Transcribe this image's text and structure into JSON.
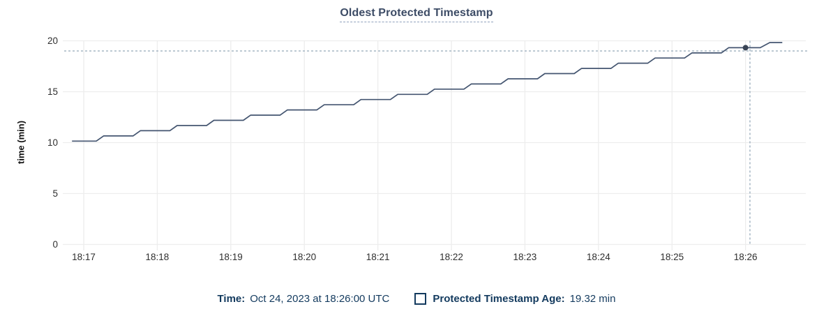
{
  "title": "Oldest Protected Timestamp",
  "y_axis": {
    "label": "time (min)",
    "ticks": [
      "0",
      "5",
      "10",
      "15",
      "20"
    ]
  },
  "x_axis": {
    "ticks": [
      "18:17",
      "18:18",
      "18:19",
      "18:20",
      "18:21",
      "18:22",
      "18:23",
      "18:24",
      "18:25",
      "18:26"
    ]
  },
  "legend": {
    "time_label": "Time:",
    "time_value": "Oct 24, 2023 at 18:26:00 UTC",
    "series_label": "Protected Timestamp Age:",
    "series_value": "19.32 min"
  },
  "colors": {
    "line": "#445570",
    "dot": "#394455",
    "crosshair": "#9eb0bf",
    "grid": "#ededed",
    "title": "#3d4c66",
    "legend_text": "#133a5e",
    "axis_text": "#2f2f2f"
  },
  "chart_data": {
    "type": "line",
    "title": "Oldest Protected Timestamp",
    "xlabel": "",
    "ylabel": "time (min)",
    "ylim": [
      0,
      20
    ],
    "grid": true,
    "legend_position": "bottom",
    "x_tick_labels": [
      "18:17",
      "18:18",
      "18:19",
      "18:20",
      "18:21",
      "18:22",
      "18:23",
      "18:24",
      "18:25",
      "18:26"
    ],
    "x_tick_minutes_after_1800": [
      17,
      18,
      19,
      20,
      21,
      22,
      23,
      24,
      25,
      26
    ],
    "series": [
      {
        "name": "Protected Timestamp Age",
        "unit": "min",
        "points": [
          [
            16.84,
            10.15
          ],
          [
            17.17,
            10.15
          ],
          [
            17.27,
            10.66
          ],
          [
            17.67,
            10.66
          ],
          [
            17.77,
            11.17
          ],
          [
            18.17,
            11.17
          ],
          [
            18.27,
            11.68
          ],
          [
            18.67,
            11.68
          ],
          [
            18.77,
            12.19
          ],
          [
            19.17,
            12.19
          ],
          [
            19.27,
            12.7
          ],
          [
            19.67,
            12.7
          ],
          [
            19.77,
            13.21
          ],
          [
            20.17,
            13.21
          ],
          [
            20.27,
            13.72
          ],
          [
            20.67,
            13.72
          ],
          [
            20.77,
            14.23
          ],
          [
            21.17,
            14.23
          ],
          [
            21.27,
            14.74
          ],
          [
            21.67,
            14.74
          ],
          [
            21.77,
            15.25
          ],
          [
            22.17,
            15.25
          ],
          [
            22.27,
            15.76
          ],
          [
            22.67,
            15.76
          ],
          [
            22.77,
            16.27
          ],
          [
            23.17,
            16.27
          ],
          [
            23.27,
            16.78
          ],
          [
            23.67,
            16.78
          ],
          [
            23.77,
            17.29
          ],
          [
            24.17,
            17.29
          ],
          [
            24.27,
            17.8
          ],
          [
            24.67,
            17.8
          ],
          [
            24.77,
            18.31
          ],
          [
            25.17,
            18.31
          ],
          [
            25.27,
            18.81
          ],
          [
            25.67,
            18.81
          ],
          [
            25.77,
            19.32
          ],
          [
            26.2,
            19.32
          ],
          [
            26.33,
            19.83
          ],
          [
            26.5,
            19.83
          ]
        ]
      }
    ],
    "hover_point": {
      "t": 26.0,
      "v": 19.32,
      "time": "18:26:00 UTC",
      "value_label": "19.32 min"
    },
    "crosshair": {
      "t": 26.06,
      "v": 19.0
    }
  }
}
